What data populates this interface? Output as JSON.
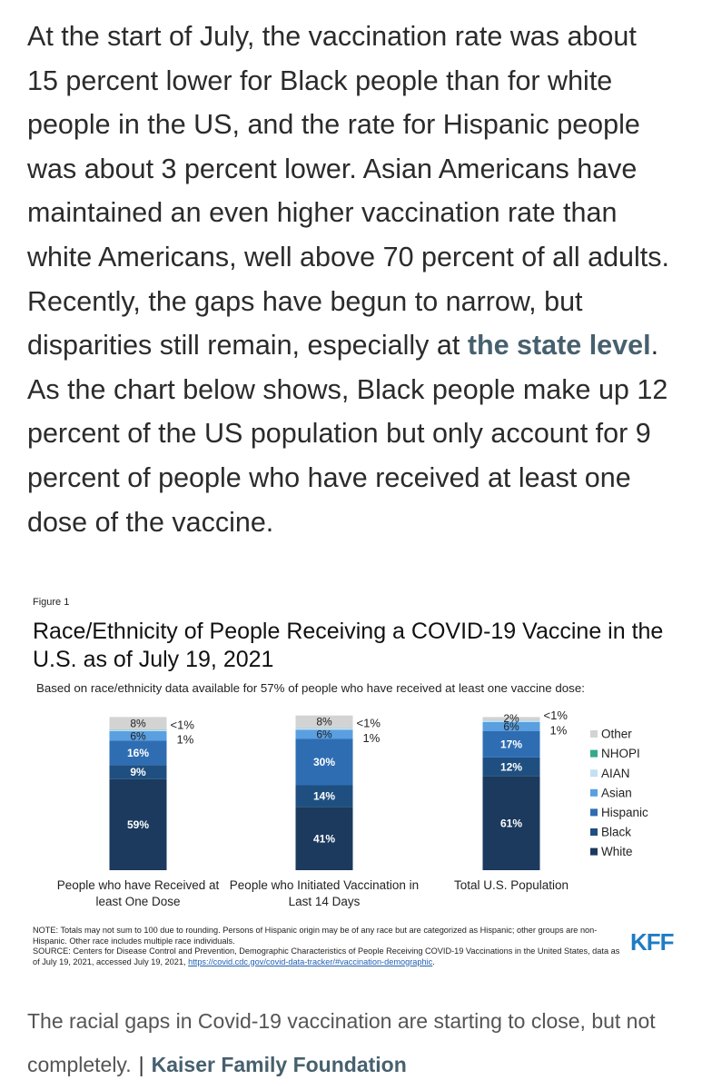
{
  "article": {
    "text_before": "At the start of July, the vaccination rate was about 15 percent lower for Black people than for white people in the US, and the rate for Hispanic people was about 3 percent lower. Asian Americans have maintained an even higher vaccination rate than white Americans, well above 70 percent of all adults. Recently, the gaps have begun to narrow, but disparities still remain, especially at ",
    "link": "the state level",
    "text_after": ". As the chart below shows, Black people make up 12 percent of the US population but only account for 9 percent of people who have received at least one dose of the vaccine."
  },
  "chart_data": {
    "type": "stacked-bar",
    "figure_label": "Figure 1",
    "title": "Race/Ethnicity of People Receiving a COVID-19 Vaccine in the U.S. as of July 19, 2021",
    "subtitle": "Based on race/ethnicity data available for 57% of people who have received at least one vaccine dose:",
    "categories": [
      "People who have Received at least One Dose",
      "People who Initiated Vaccination in Last 14 Days",
      "Total U.S. Population"
    ],
    "series": [
      {
        "name": "White",
        "color": "#1b3a5e",
        "values": [
          59,
          41,
          61
        ],
        "value_labels": [
          "59%",
          "41%",
          "61%"
        ]
      },
      {
        "name": "Black",
        "color": "#1f4f80",
        "values": [
          9,
          14,
          12
        ],
        "value_labels": [
          "9%",
          "14%",
          "12%"
        ]
      },
      {
        "name": "Hispanic",
        "color": "#2f6db3",
        "values": [
          16,
          30,
          17
        ],
        "value_labels": [
          "16%",
          "30%",
          "17%"
        ]
      },
      {
        "name": "Asian",
        "color": "#5a9fe0",
        "values": [
          6,
          6,
          6
        ],
        "value_labels": [
          "6%",
          "6%",
          "6%"
        ]
      },
      {
        "name": "AIAN",
        "color": "#c4dff2",
        "values": [
          1,
          1,
          1
        ],
        "value_labels": [
          "1%",
          "1%",
          "1%"
        ]
      },
      {
        "name": "NHOPI",
        "color": "#35a98e",
        "values": [
          0.2,
          0.2,
          0.2
        ],
        "value_labels": [
          "<1%",
          "<1%",
          "<1%"
        ]
      },
      {
        "name": "Other",
        "color": "#d3d3d3",
        "values": [
          8,
          8,
          2
        ],
        "value_labels": [
          "8%",
          "8%",
          "2%"
        ]
      }
    ],
    "legend": "right",
    "note": "NOTE: Totals may not sum to 100 due to rounding. Persons of Hispanic origin may be of any race but are categorized as Hispanic; other groups are non-Hispanic. Other race includes multiple race individuals.",
    "source": "SOURCE: Centers for Disease Control and Prevention, Demographic Characteristics of People Receiving COVID-19 Vaccinations in the United States, data as of July 19, 2021, accessed July 19, 2021, ",
    "source_link": "https://covid.cdc.gov/covid-data-tracker/#vaccination-demographic",
    "source_end": ".",
    "logo": "KFF"
  },
  "caption": {
    "text": "The racial gaps in Covid-19 vaccination are starting to close, but not completely.",
    "separator": "|",
    "credit": "Kaiser Family Foundation"
  }
}
